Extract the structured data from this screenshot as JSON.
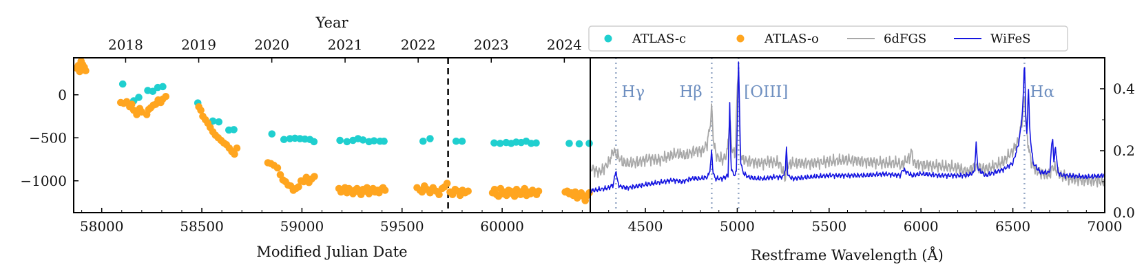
{
  "colors": {
    "atlas_c": "#1fcfcf",
    "atlas_o": "#ffa51f",
    "sixdfgs": "#a8a8a8",
    "wifes": "#1515e0",
    "line_marker": "#97a9c6",
    "line_label": "#6e8fc0"
  },
  "chart_data": [
    {
      "type": "scatter",
      "title": "",
      "xlabel": "Modified Julian Date",
      "ylabel": "",
      "secondary_xlabel": "Year",
      "xlim": [
        57860,
        60440
      ],
      "ylim": [
        -1370,
        430
      ],
      "x_ticks": [
        58000,
        58500,
        59000,
        59500,
        60000
      ],
      "x_tick_labels": [
        "58000",
        "58500",
        "59000",
        "59500",
        "60000"
      ],
      "y_ticks": [
        0,
        -500,
        -1000
      ],
      "y_tick_labels": [
        "0",
        "−500",
        "−1000"
      ],
      "year_ticks": [
        {
          "mjd": 58119.5,
          "label": "2018"
        },
        {
          "mjd": 58484.5,
          "label": "2019"
        },
        {
          "mjd": 58849.5,
          "label": "2020"
        },
        {
          "mjd": 59215.5,
          "label": "2021"
        },
        {
          "mjd": 59580.5,
          "label": "2022"
        },
        {
          "mjd": 59945.5,
          "label": "2023"
        },
        {
          "mjd": 60310.5,
          "label": "2024"
        }
      ],
      "vline_mjd": 59730,
      "series": [
        {
          "name": "ATLAS-c",
          "x": [
            58105,
            58160,
            58185,
            58230,
            58255,
            58280,
            58305,
            58480,
            58555,
            58585,
            58635,
            58660,
            58850,
            58910,
            58940,
            58965,
            58990,
            59015,
            59040,
            59060,
            59190,
            59225,
            59255,
            59280,
            59305,
            59335,
            59360,
            59390,
            59410,
            59605,
            59640,
            59770,
            59800,
            59960,
            59990,
            60020,
            60045,
            60070,
            60095,
            60120,
            60145,
            60170,
            60335,
            60385,
            60435
          ],
          "y": [
            125,
            -70,
            -30,
            50,
            40,
            85,
            95,
            -95,
            -305,
            -315,
            -410,
            -405,
            -455,
            -520,
            -510,
            -505,
            -510,
            -515,
            -520,
            -545,
            -530,
            -545,
            -530,
            -510,
            -525,
            -545,
            -535,
            -540,
            -540,
            -540,
            -510,
            -540,
            -540,
            -560,
            -565,
            -555,
            -565,
            -550,
            -555,
            -540,
            -565,
            -560,
            -565,
            -570,
            -565
          ]
        },
        {
          "name": "ATLAS-o",
          "x": [
            57875,
            57883,
            57890,
            57897,
            57905,
            57913,
            57920,
            58095,
            58110,
            58125,
            58140,
            58150,
            58160,
            58175,
            58190,
            58200,
            58225,
            58235,
            58245,
            58258,
            58270,
            58282,
            58295,
            58305,
            58320,
            58485,
            58495,
            58505,
            58518,
            58530,
            58542,
            58555,
            58568,
            58582,
            58596,
            58610,
            58623,
            58637,
            58650,
            58663,
            58675,
            58830,
            58845,
            58860,
            58878,
            58892,
            58905,
            58918,
            58931,
            58944,
            58957,
            58970,
            58983,
            58996,
            59009,
            59022,
            59035,
            59048,
            59062,
            59185,
            59195,
            59205,
            59215,
            59225,
            59235,
            59245,
            59255,
            59265,
            59275,
            59285,
            59295,
            59305,
            59315,
            59325,
            59335,
            59345,
            59355,
            59365,
            59375,
            59385,
            59395,
            59405,
            59415,
            59575,
            59590,
            59600,
            59612,
            59625,
            59640,
            59655,
            59670,
            59685,
            59700,
            59712,
            59725,
            59740,
            59752,
            59765,
            59778,
            59790,
            59802,
            59815,
            59830,
            59952,
            59962,
            59972,
            59982,
            59992,
            60002,
            60012,
            60022,
            60032,
            60042,
            60052,
            60062,
            60072,
            60082,
            60092,
            60102,
            60112,
            60122,
            60132,
            60142,
            60152,
            60162,
            60172,
            60182,
            60315,
            60325,
            60335,
            60345,
            60355,
            60365,
            60375,
            60385,
            60395,
            60405,
            60415,
            60425,
            60435
          ],
          "y": [
            310,
            340,
            270,
            390,
            350,
            320,
            280,
            -90,
            -100,
            -80,
            -140,
            -110,
            -180,
            -230,
            -160,
            -200,
            -230,
            -170,
            -150,
            -120,
            -110,
            -60,
            -90,
            -50,
            -20,
            -140,
            -180,
            -250,
            -290,
            -330,
            -380,
            -430,
            -470,
            -500,
            -530,
            -560,
            -580,
            -620,
            -660,
            -690,
            -620,
            -790,
            -800,
            -820,
            -850,
            -930,
            -990,
            -1010,
            -1050,
            -1060,
            -1110,
            -1090,
            -1070,
            -1000,
            -1010,
            -960,
            -1020,
            -980,
            -950,
            -1090,
            -1130,
            -1110,
            -1080,
            -1140,
            -1090,
            -1120,
            -1150,
            -1110,
            -1090,
            -1130,
            -1160,
            -1100,
            -1120,
            -1080,
            -1150,
            -1120,
            -1090,
            -1130,
            -1110,
            -1140,
            -1100,
            -1080,
            -1110,
            -1080,
            -1110,
            -1130,
            -1060,
            -1100,
            -1140,
            -1080,
            -1120,
            -1160,
            -1090,
            -1070,
            -1030,
            -1130,
            -1160,
            -1100,
            -1120,
            -1170,
            -1110,
            -1140,
            -1120,
            -1140,
            -1100,
            -1160,
            -1180,
            -1090,
            -1150,
            -1130,
            -1170,
            -1110,
            -1120,
            -1150,
            -1180,
            -1100,
            -1140,
            -1160,
            -1120,
            -1090,
            -1170,
            -1130,
            -1150,
            -1110,
            -1140,
            -1160,
            -1120,
            -1130,
            -1120,
            -1150,
            -1140,
            -1170,
            -1130,
            -1200,
            -1160,
            -1140,
            -1180,
            -1230,
            -1170,
            -1140
          ]
        }
      ]
    },
    {
      "type": "line",
      "title": "",
      "xlabel": "Restframe Wavelength (Å)",
      "ylabel": "",
      "xlim": [
        4200,
        7000
      ],
      "ylim": [
        0.0,
        0.5
      ],
      "x_ticks": [
        4500,
        5000,
        5500,
        6000,
        6500,
        7000
      ],
      "x_tick_labels": [
        "4500",
        "5000",
        "5500",
        "6000",
        "6500",
        "7000"
      ],
      "y_ticks": [
        0.0,
        0.2,
        0.4
      ],
      "y_tick_labels": [
        "0.0",
        "0.2",
        "0.4"
      ],
      "y_axis_side": "right",
      "emission_lines": [
        {
          "label": "Hγ",
          "wavelength": 4340
        },
        {
          "label": "Hβ",
          "wavelength": 4861
        },
        {
          "label": "[OIII]",
          "wavelength": 5007
        },
        {
          "label": "Hα",
          "wavelength": 6563
        }
      ],
      "series": [
        {
          "name": "6dFGS",
          "x": [
            4200,
            4250,
            4300,
            4325,
            4340,
            4355,
            4380,
            4420,
            4470,
            4520,
            4570,
            4620,
            4670,
            4720,
            4770,
            4810,
            4835,
            4852,
            4861,
            4872,
            4890,
            4920,
            4945,
            4959,
            4972,
            4990,
            5000,
            5007,
            5015,
            5030,
            5080,
            5130,
            5180,
            5230,
            5262,
            5268,
            5275,
            5300,
            5400,
            5500,
            5600,
            5700,
            5800,
            5880,
            5893,
            5905,
            5940,
            5950,
            5960,
            6000,
            6100,
            6200,
            6250,
            6290,
            6300,
            6310,
            6350,
            6400,
            6450,
            6500,
            6530,
            6550,
            6563,
            6575,
            6584,
            6600,
            6640,
            6700,
            6716,
            6731,
            6760,
            6800,
            6900,
            7000
          ],
          "y": [
            0.145,
            0.13,
            0.16,
            0.2,
            0.19,
            0.18,
            0.16,
            0.16,
            0.165,
            0.175,
            0.17,
            0.18,
            0.19,
            0.185,
            0.2,
            0.2,
            0.22,
            0.28,
            0.34,
            0.22,
            0.18,
            0.17,
            0.19,
            0.3,
            0.2,
            0.19,
            0.4,
            0.47,
            0.2,
            0.17,
            0.165,
            0.16,
            0.165,
            0.16,
            0.11,
            0.16,
            0.15,
            0.16,
            0.16,
            0.165,
            0.17,
            0.165,
            0.16,
            0.16,
            0.15,
            0.16,
            0.18,
            0.2,
            0.16,
            0.155,
            0.15,
            0.145,
            0.13,
            0.15,
            0.15,
            0.15,
            0.14,
            0.15,
            0.165,
            0.2,
            0.23,
            0.3,
            0.38,
            0.25,
            0.22,
            0.16,
            0.13,
            0.12,
            0.15,
            0.14,
            0.12,
            0.11,
            0.105,
            0.1
          ]
        },
        {
          "name": "WiFeS",
          "x": [
            4200,
            4250,
            4300,
            4325,
            4335,
            4340,
            4348,
            4360,
            4400,
            4450,
            4500,
            4550,
            4600,
            4650,
            4700,
            4750,
            4800,
            4840,
            4852,
            4861,
            4868,
            4880,
            4920,
            4950,
            4959,
            4966,
            4980,
            4995,
            5007,
            5018,
            5030,
            5060,
            5100,
            5150,
            5200,
            5250,
            5262,
            5268,
            5275,
            5300,
            5400,
            5500,
            5600,
            5700,
            5800,
            5890,
            5900,
            5950,
            6000,
            6100,
            6200,
            6250,
            6290,
            6300,
            6310,
            6350,
            6400,
            6450,
            6500,
            6530,
            6545,
            6556,
            6563,
            6570,
            6577,
            6584,
            6592,
            6610,
            6650,
            6700,
            6716,
            6724,
            6731,
            6745,
            6770,
            6800,
            6900,
            7000
          ],
          "y": [
            0.07,
            0.075,
            0.08,
            0.09,
            0.12,
            0.14,
            0.1,
            0.085,
            0.08,
            0.085,
            0.09,
            0.095,
            0.1,
            0.105,
            0.1,
            0.11,
            0.11,
            0.115,
            0.14,
            0.2,
            0.13,
            0.11,
            0.11,
            0.12,
            0.35,
            0.15,
            0.12,
            0.13,
            0.49,
            0.17,
            0.13,
            0.115,
            0.11,
            0.11,
            0.115,
            0.115,
            0.14,
            0.21,
            0.12,
            0.11,
            0.115,
            0.12,
            0.12,
            0.12,
            0.125,
            0.12,
            0.14,
            0.12,
            0.125,
            0.12,
            0.12,
            0.12,
            0.13,
            0.22,
            0.14,
            0.12,
            0.13,
            0.14,
            0.16,
            0.22,
            0.28,
            0.36,
            0.5,
            0.32,
            0.24,
            0.42,
            0.26,
            0.16,
            0.13,
            0.13,
            0.25,
            0.15,
            0.22,
            0.13,
            0.12,
            0.12,
            0.115,
            0.12
          ]
        }
      ]
    }
  ]
}
